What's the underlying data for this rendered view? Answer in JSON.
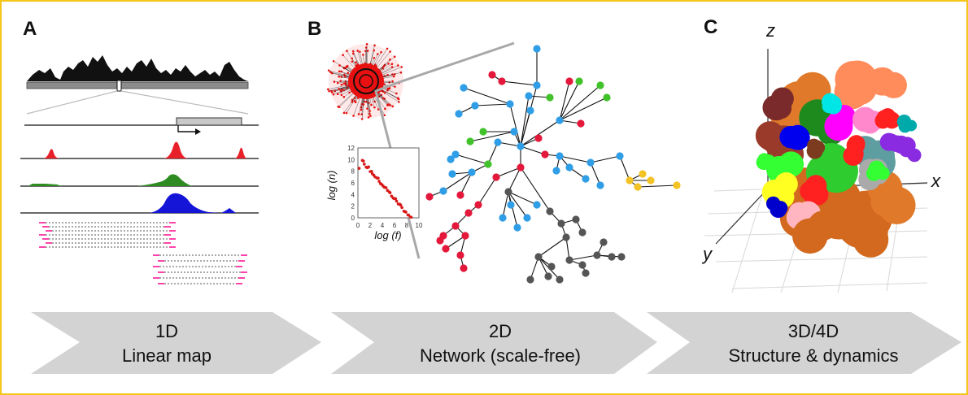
{
  "panels": {
    "a": {
      "label": "A"
    },
    "b": {
      "label": "B",
      "inset_xlabel": "log (f)",
      "inset_ylabel": "log (n)",
      "inset_xticks": [
        "0",
        "2",
        "4",
        "6",
        "8",
        "10"
      ],
      "inset_yticks": [
        "0",
        "2",
        "4",
        "6",
        "8",
        "10",
        "12"
      ]
    },
    "c": {
      "label": "C",
      "axis_z": "z",
      "axis_x": "x",
      "axis_y": "y"
    }
  },
  "arrows": [
    {
      "line1": "1D",
      "line2": "Linear map",
      "color": "#d3d3d3"
    },
    {
      "line1": "2D",
      "line2": "Network (scale-free)",
      "color": "#d3d3d3"
    },
    {
      "line1": "3D/4D",
      "line2": "Structure & dynamics",
      "color": "#d3d3d3"
    }
  ],
  "colors": {
    "frame": "#f5c518",
    "red": "#e8202a",
    "green": "#2e8b22",
    "blue": "#1515d8",
    "node_blue": "#2f9ee6",
    "node_red": "#e3183a",
    "node_green": "#41c22b",
    "node_gray": "#555555",
    "node_yellow": "#f3c224",
    "pink": "#ff44aa"
  }
}
